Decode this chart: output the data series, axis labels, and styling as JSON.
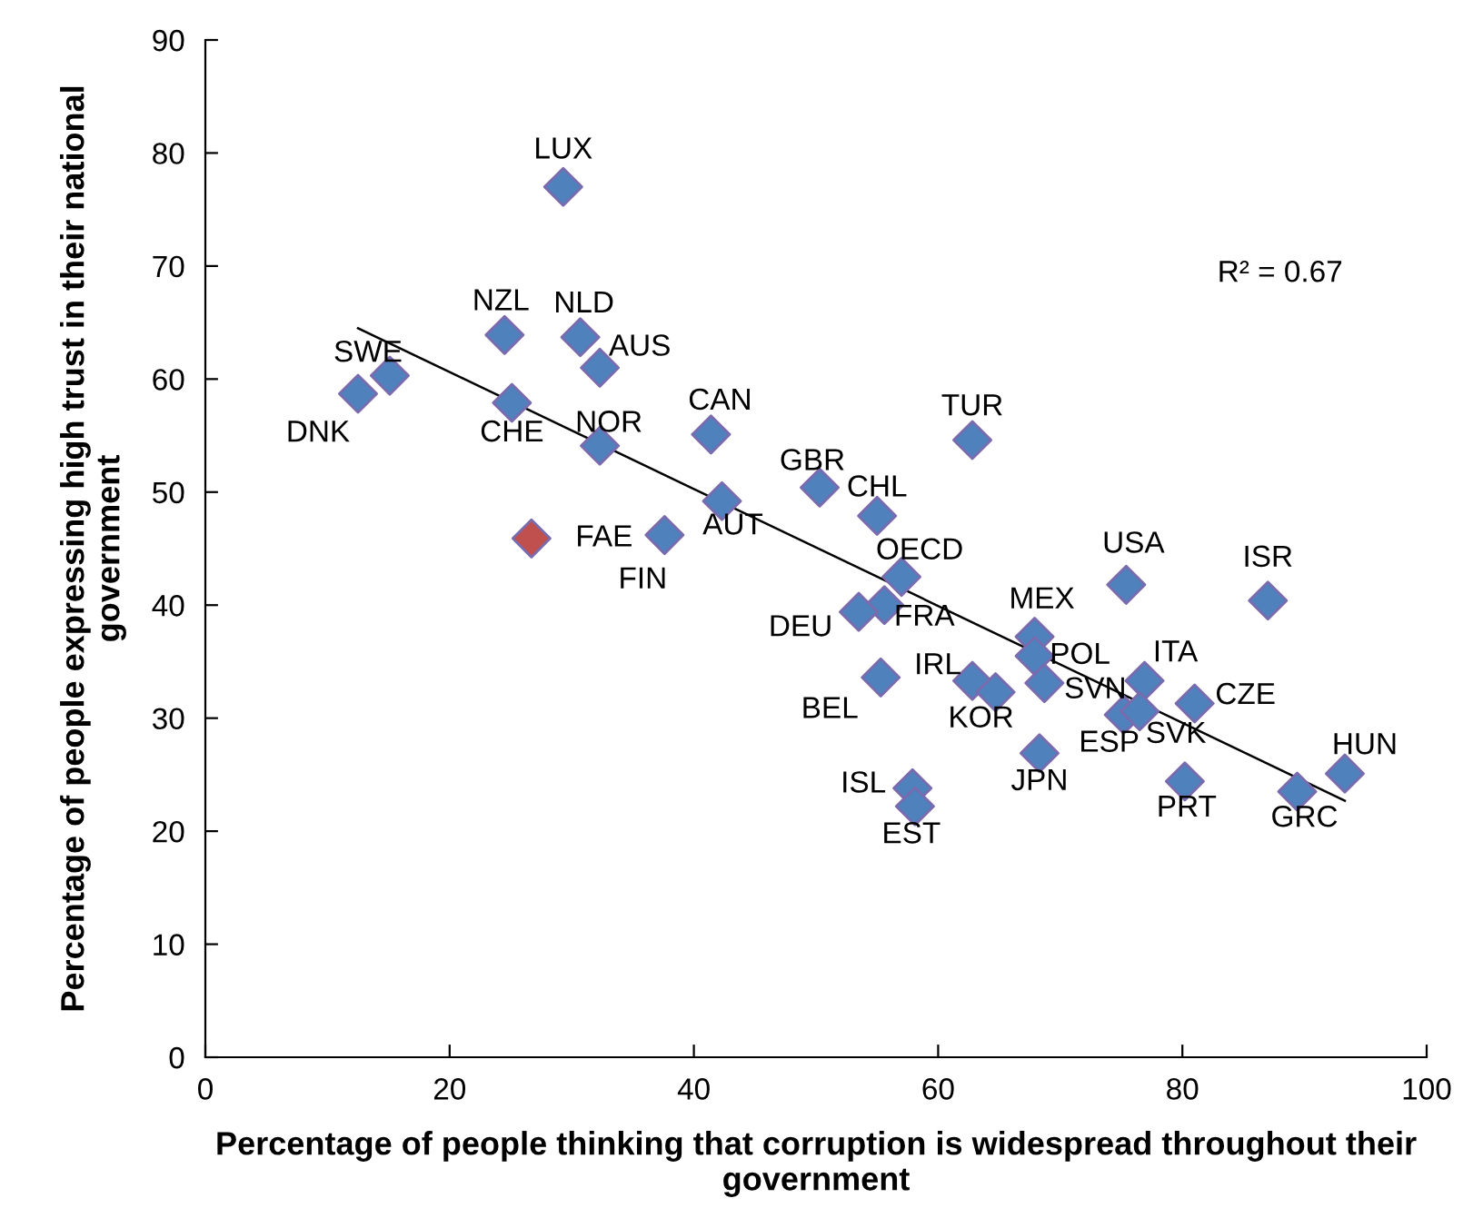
{
  "chart_data": {
    "type": "scatter",
    "xlabel": "Percentage of people thinking that corruption is widespread throughout their government",
    "ylabel": "Percentage of people expressing high trust in their national government",
    "xlim": [
      0,
      100
    ],
    "xticks": [
      0,
      20,
      40,
      60,
      80,
      100
    ],
    "ylim": [
      0,
      90
    ],
    "yticks": [
      0,
      10,
      20,
      30,
      40,
      50,
      60,
      70,
      80,
      90
    ],
    "grid": false,
    "legend": false,
    "series": [
      {
        "marker": "diamond",
        "x": [
          29.3,
          24.5,
          30.7,
          32.3,
          15.1,
          12.5,
          25.1,
          32.3,
          41.4,
          50.3,
          55.0,
          42.3,
          37.6,
          26.7,
          57.0,
          55.6,
          53.5,
          55.3,
          67.9,
          67.9,
          68.7,
          62.8,
          64.7,
          68.3,
          57.9,
          58.1,
          75.4,
          87.0,
          76.9,
          81.0,
          75.2,
          76.5,
          80.2,
          89.4,
          93.3,
          62.8
        ],
        "values": [
          77.0,
          63.9,
          63.7,
          61.0,
          60.3,
          58.7,
          57.9,
          54.1,
          55.1,
          50.4,
          47.9,
          49.2,
          46.2,
          45.9,
          42.5,
          40.0,
          39.4,
          33.6,
          37.2,
          35.5,
          33.1,
          33.3,
          32.3,
          26.9,
          23.8,
          22.2,
          41.8,
          40.4,
          33.3,
          31.3,
          30.3,
          30.6,
          24.4,
          23.5,
          25.1,
          54.6
        ],
        "colors": [
          "#4f81bd",
          "#4f81bd",
          "#4f81bd",
          "#4f81bd",
          "#4f81bd",
          "#4f81bd",
          "#4f81bd",
          "#4f81bd",
          "#4f81bd",
          "#4f81bd",
          "#4f81bd",
          "#4f81bd",
          "#4f81bd",
          "#c0504d",
          "#4f81bd",
          "#4f81bd",
          "#4f81bd",
          "#4f81bd",
          "#4f81bd",
          "#4f81bd",
          "#4f81bd",
          "#4f81bd",
          "#4f81bd",
          "#4f81bd",
          "#4f81bd",
          "#4f81bd",
          "#4f81bd",
          "#4f81bd",
          "#4f81bd",
          "#4f81bd",
          "#4f81bd",
          "#4f81bd",
          "#4f81bd",
          "#4f81bd",
          "#4f81bd",
          "#4f81bd"
        ]
      },
      {
        "type": "line",
        "x": [
          12.5,
          93.3
        ],
        "values": [
          64.5,
          22.7
        ],
        "color": "#000000",
        "marker": "none"
      }
    ],
    "annotations": [
      {
        "text": "LUX",
        "x": 29.3,
        "y": 77.0
      },
      {
        "text": "NZL",
        "x": 24.5,
        "y": 63.9
      },
      {
        "text": "NLD",
        "x": 30.7,
        "y": 63.7
      },
      {
        "text": "AUS",
        "x": 32.3,
        "y": 61.0
      },
      {
        "text": "SWE",
        "x": 15.1,
        "y": 60.3
      },
      {
        "text": "DNK",
        "x": 12.5,
        "y": 58.7
      },
      {
        "text": "CHE",
        "x": 25.1,
        "y": 57.9
      },
      {
        "text": "NOR",
        "x": 32.3,
        "y": 54.1
      },
      {
        "text": "CAN",
        "x": 41.4,
        "y": 55.1
      },
      {
        "text": "GBR",
        "x": 50.3,
        "y": 50.4
      },
      {
        "text": "CHL",
        "x": 55.0,
        "y": 47.9
      },
      {
        "text": "AUT",
        "x": 42.3,
        "y": 49.2
      },
      {
        "text": "FIN",
        "x": 37.6,
        "y": 46.2
      },
      {
        "text": "FAE",
        "x": 26.7,
        "y": 45.9
      },
      {
        "text": "OECD",
        "x": 57.0,
        "y": 42.5
      },
      {
        "text": "FRA",
        "x": 55.6,
        "y": 40.0
      },
      {
        "text": "DEU",
        "x": 53.5,
        "y": 39.4
      },
      {
        "text": "BEL",
        "x": 55.3,
        "y": 33.6
      },
      {
        "text": "MEX",
        "x": 67.9,
        "y": 37.2
      },
      {
        "text": "POL",
        "x": 67.9,
        "y": 35.5
      },
      {
        "text": "SVN",
        "x": 68.7,
        "y": 33.1
      },
      {
        "text": "IRL",
        "x": 62.8,
        "y": 33.3
      },
      {
        "text": "KOR",
        "x": 64.7,
        "y": 32.3
      },
      {
        "text": "JPN",
        "x": 68.3,
        "y": 26.9
      },
      {
        "text": "ISL",
        "x": 57.9,
        "y": 23.8
      },
      {
        "text": "EST",
        "x": 58.1,
        "y": 22.2
      },
      {
        "text": "USA",
        "x": 75.4,
        "y": 41.8
      },
      {
        "text": "ISR",
        "x": 87.0,
        "y": 40.4
      },
      {
        "text": "ITA",
        "x": 76.9,
        "y": 33.3
      },
      {
        "text": "CZE",
        "x": 81.0,
        "y": 31.3
      },
      {
        "text": "ESP",
        "x": 75.2,
        "y": 30.3
      },
      {
        "text": "SVK",
        "x": 76.5,
        "y": 30.6
      },
      {
        "text": "PRT",
        "x": 80.2,
        "y": 24.4
      },
      {
        "text": "GRC",
        "x": 89.4,
        "y": 23.5
      },
      {
        "text": "HUN",
        "x": 93.3,
        "y": 25.1
      },
      {
        "text": "TUR",
        "x": 62.8,
        "y": 54.6
      },
      "R² = 0.67"
    ]
  }
}
